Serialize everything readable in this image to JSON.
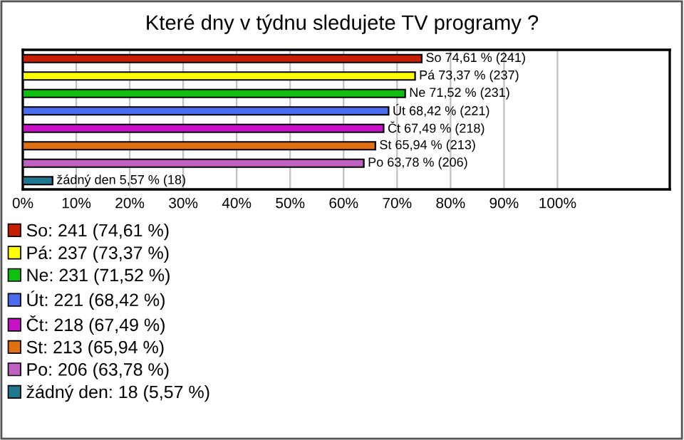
{
  "chart_data": {
    "type": "bar",
    "orientation": "horizontal",
    "title": "Které dny v týdnu sledujete TV programy ?",
    "categories": [
      null,
      null,
      null,
      null,
      null,
      null,
      null,
      null
    ],
    "series": [
      {
        "name": "So: 241 (74,61 %)",
        "color": "#c81e00",
        "values": [
          74.61,
          null,
          null,
          null,
          null,
          null,
          null,
          null
        ],
        "value_labels": [
          "So 74,61 % (241)",
          null,
          null,
          null,
          null,
          null,
          null,
          null
        ]
      },
      {
        "name": "Pá: 237 (73,37 %)",
        "color": "#ffff00",
        "values": [
          null,
          73.37,
          null,
          null,
          null,
          null,
          null,
          null
        ],
        "value_labels": [
          null,
          "Pá 73,37 % (237)",
          null,
          null,
          null,
          null,
          null,
          null
        ]
      },
      {
        "name": "Ne: 231 (71,52 %)",
        "color": "#10c010",
        "values": [
          null,
          null,
          71.52,
          null,
          null,
          null,
          null,
          null
        ],
        "value_labels": [
          null,
          null,
          "Ne 71,52 % (231)",
          null,
          null,
          null,
          null,
          null
        ]
      },
      {
        "name": "Út: 221 (68,42 %)",
        "color": "#4a6cf0",
        "values": [
          null,
          null,
          null,
          68.42,
          null,
          null,
          null,
          null
        ],
        "value_labels": [
          null,
          null,
          null,
          "Út 68,42 % (221)",
          null,
          null,
          null,
          null
        ]
      },
      {
        "name": "Čt: 218 (67,49 %)",
        "color": "#c810c8",
        "values": [
          null,
          null,
          null,
          null,
          67.49,
          null,
          null,
          null
        ],
        "value_labels": [
          null,
          null,
          null,
          null,
          "Čt 67,49 % (218)",
          null,
          null,
          null
        ]
      },
      {
        "name": "St: 213 (65,94 %)",
        "color": "#e07010",
        "values": [
          null,
          null,
          null,
          null,
          null,
          65.94,
          null,
          null
        ],
        "value_labels": [
          null,
          null,
          null,
          null,
          null,
          "St 65,94 % (213)",
          null,
          null
        ]
      },
      {
        "name": "Po: 206 (63,78 %)",
        "color": "#c060c0",
        "values": [
          null,
          null,
          null,
          null,
          null,
          null,
          63.78,
          null
        ],
        "value_labels": [
          null,
          null,
          null,
          null,
          null,
          null,
          "Po 63,78 % (206)",
          null
        ]
      },
      {
        "name": "žádný den: 18 (5,57 %)",
        "color": "#207890",
        "values": [
          null,
          null,
          null,
          null,
          null,
          null,
          null,
          5.57
        ],
        "value_labels": [
          null,
          null,
          null,
          null,
          null,
          null,
          null,
          "žádný den 5,57 % (18)"
        ]
      }
    ],
    "xlim": [
      0,
      121
    ],
    "xticks": [
      {
        "value": 0,
        "label": "0%"
      },
      {
        "value": 10,
        "label": "10%"
      },
      {
        "value": 20,
        "label": "20%"
      },
      {
        "value": 30,
        "label": "30%"
      },
      {
        "value": 40,
        "label": "40%"
      },
      {
        "value": 50,
        "label": "50%"
      },
      {
        "value": 60,
        "label": "60%"
      },
      {
        "value": 70,
        "label": "70%"
      },
      {
        "value": 80,
        "label": "80%"
      },
      {
        "value": 90,
        "label": "90%"
      },
      {
        "value": 100,
        "label": "100%"
      }
    ],
    "grid": "x",
    "legend": "bottom left",
    "tick_labels": "x"
  }
}
